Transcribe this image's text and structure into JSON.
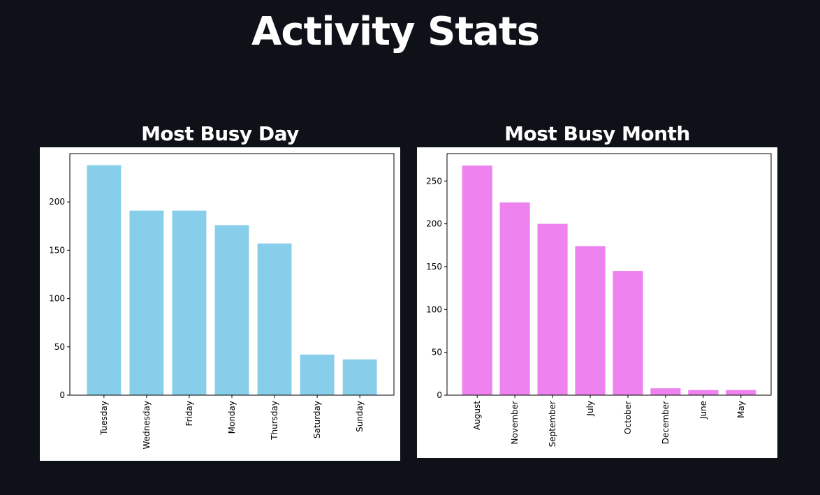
{
  "page": {
    "title": "Activity Stats"
  },
  "chart_data": [
    {
      "type": "bar",
      "title": "Most Busy Day",
      "categories": [
        "Tuesday",
        "Wednesday",
        "Friday",
        "Monday",
        "Thursday",
        "Saturday",
        "Sunday"
      ],
      "values": [
        238,
        191,
        191,
        176,
        157,
        42,
        37
      ],
      "color": "#87ceeb",
      "yticks": [
        0,
        50,
        100,
        150,
        200
      ],
      "ylim": [
        0,
        250
      ],
      "xlabel": "",
      "ylabel": "",
      "grid": false
    },
    {
      "type": "bar",
      "title": "Most Busy Month",
      "categories": [
        "August",
        "November",
        "September",
        "July",
        "October",
        "December",
        "June",
        "May"
      ],
      "values": [
        268,
        225,
        200,
        174,
        145,
        8,
        6,
        6
      ],
      "color": "#ee82ee",
      "yticks": [
        0,
        50,
        100,
        150,
        200,
        250
      ],
      "ylim": [
        0,
        282
      ],
      "xlabel": "",
      "ylabel": "",
      "grid": false
    }
  ]
}
